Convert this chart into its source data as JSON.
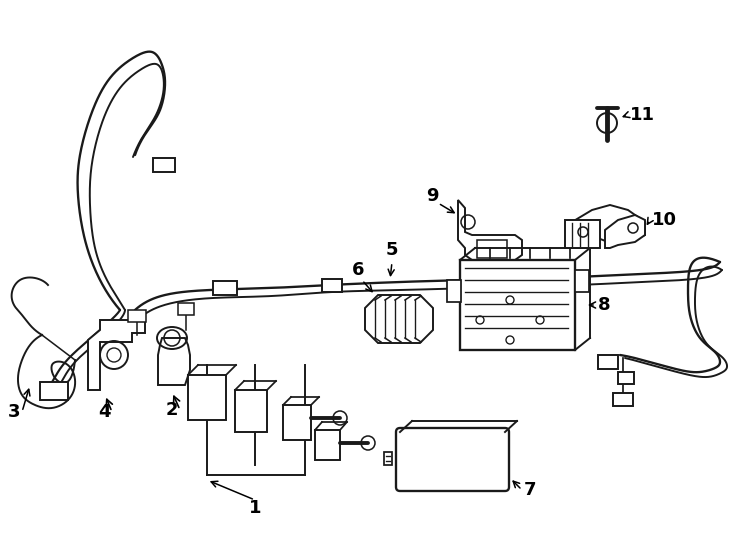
{
  "bg_color": "#ffffff",
  "line_color": "#1a1a1a",
  "lw": 1.4,
  "fig_w": 7.34,
  "fig_h": 5.4,
  "dpi": 100,
  "imgw": 734,
  "imgh": 540
}
